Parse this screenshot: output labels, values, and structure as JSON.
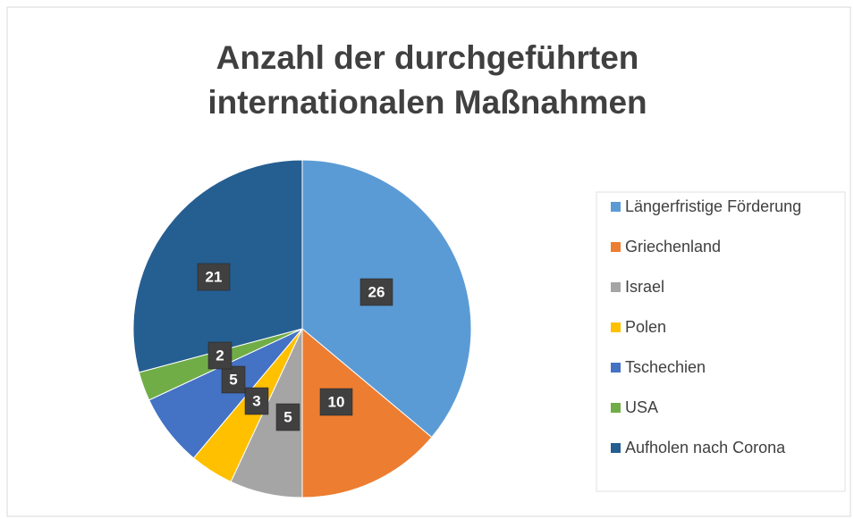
{
  "chart_data": {
    "type": "pie",
    "title": "Anzahl der durchgeführten internationalen Maßnahmen",
    "categories": [
      "Längerfristige Förderung",
      "Griechenland",
      "Israel",
      "Polen",
      "Tschechien",
      "USA",
      "Aufholen nach Corona"
    ],
    "values": [
      26,
      10,
      5,
      3,
      5,
      2,
      21
    ],
    "colors": [
      "#5b9bd5",
      "#ed7d31",
      "#a5a5a5",
      "#ffc000",
      "#4472c4",
      "#70ad47",
      "#255e91"
    ],
    "legend": "right"
  }
}
